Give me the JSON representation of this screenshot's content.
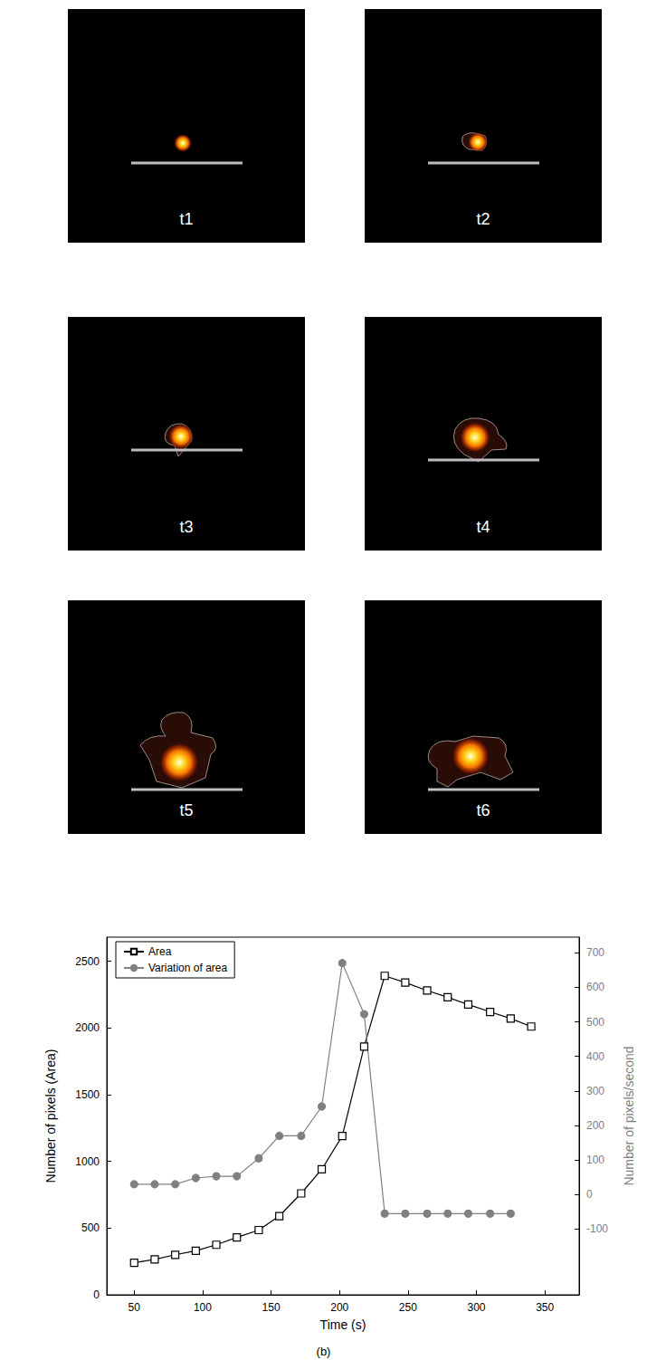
{
  "panels": [
    {
      "label": "t1"
    },
    {
      "label": "t2"
    },
    {
      "label": "t3"
    },
    {
      "label": "t4"
    },
    {
      "label": "t5"
    },
    {
      "label": "t6"
    }
  ],
  "caption": "(b)",
  "chart_data": {
    "type": "line",
    "x_label": "Time (s)",
    "y_label": "Number of pixels (Area)",
    "y2_label": "Number of pixels/second",
    "xlim": [
      30,
      375
    ],
    "xticks": [
      50,
      100,
      150,
      200,
      250,
      300,
      350
    ],
    "ylim": [
      0,
      2680
    ],
    "yticks": [
      0,
      500,
      1000,
      1500,
      2000,
      2500
    ],
    "y2lim": [
      -290,
      745
    ],
    "y2ticks": [
      -100,
      0,
      100,
      200,
      300,
      400,
      500,
      600,
      700
    ],
    "legend": "upper left",
    "grid": false,
    "series": [
      {
        "name": "Area",
        "color": "#000000",
        "marker": "open_square",
        "axis": "y",
        "x": [
          50,
          65,
          80,
          95,
          110,
          125,
          141,
          156,
          172,
          187,
          202,
          218,
          233,
          248,
          264,
          279,
          294,
          310,
          325,
          340
        ],
        "values": [
          240,
          265,
          300,
          330,
          375,
          430,
          485,
          590,
          760,
          940,
          1190,
          1860,
          2390,
          2340,
          2280,
          2230,
          2175,
          2120,
          2070,
          2010
        ]
      },
      {
        "name": "Variation of area",
        "color": "#808080",
        "marker": "filled_circle",
        "axis": "y2",
        "x": [
          50,
          65,
          80,
          95,
          110,
          125,
          141,
          156,
          172,
          187,
          202,
          218,
          233,
          248,
          264,
          279,
          294,
          310,
          325
        ],
        "values": [
          30,
          30,
          30,
          48,
          53,
          53,
          105,
          170,
          170,
          255,
          670,
          522,
          -55,
          -55,
          -55,
          -55,
          -55,
          -55,
          -55
        ]
      }
    ]
  }
}
